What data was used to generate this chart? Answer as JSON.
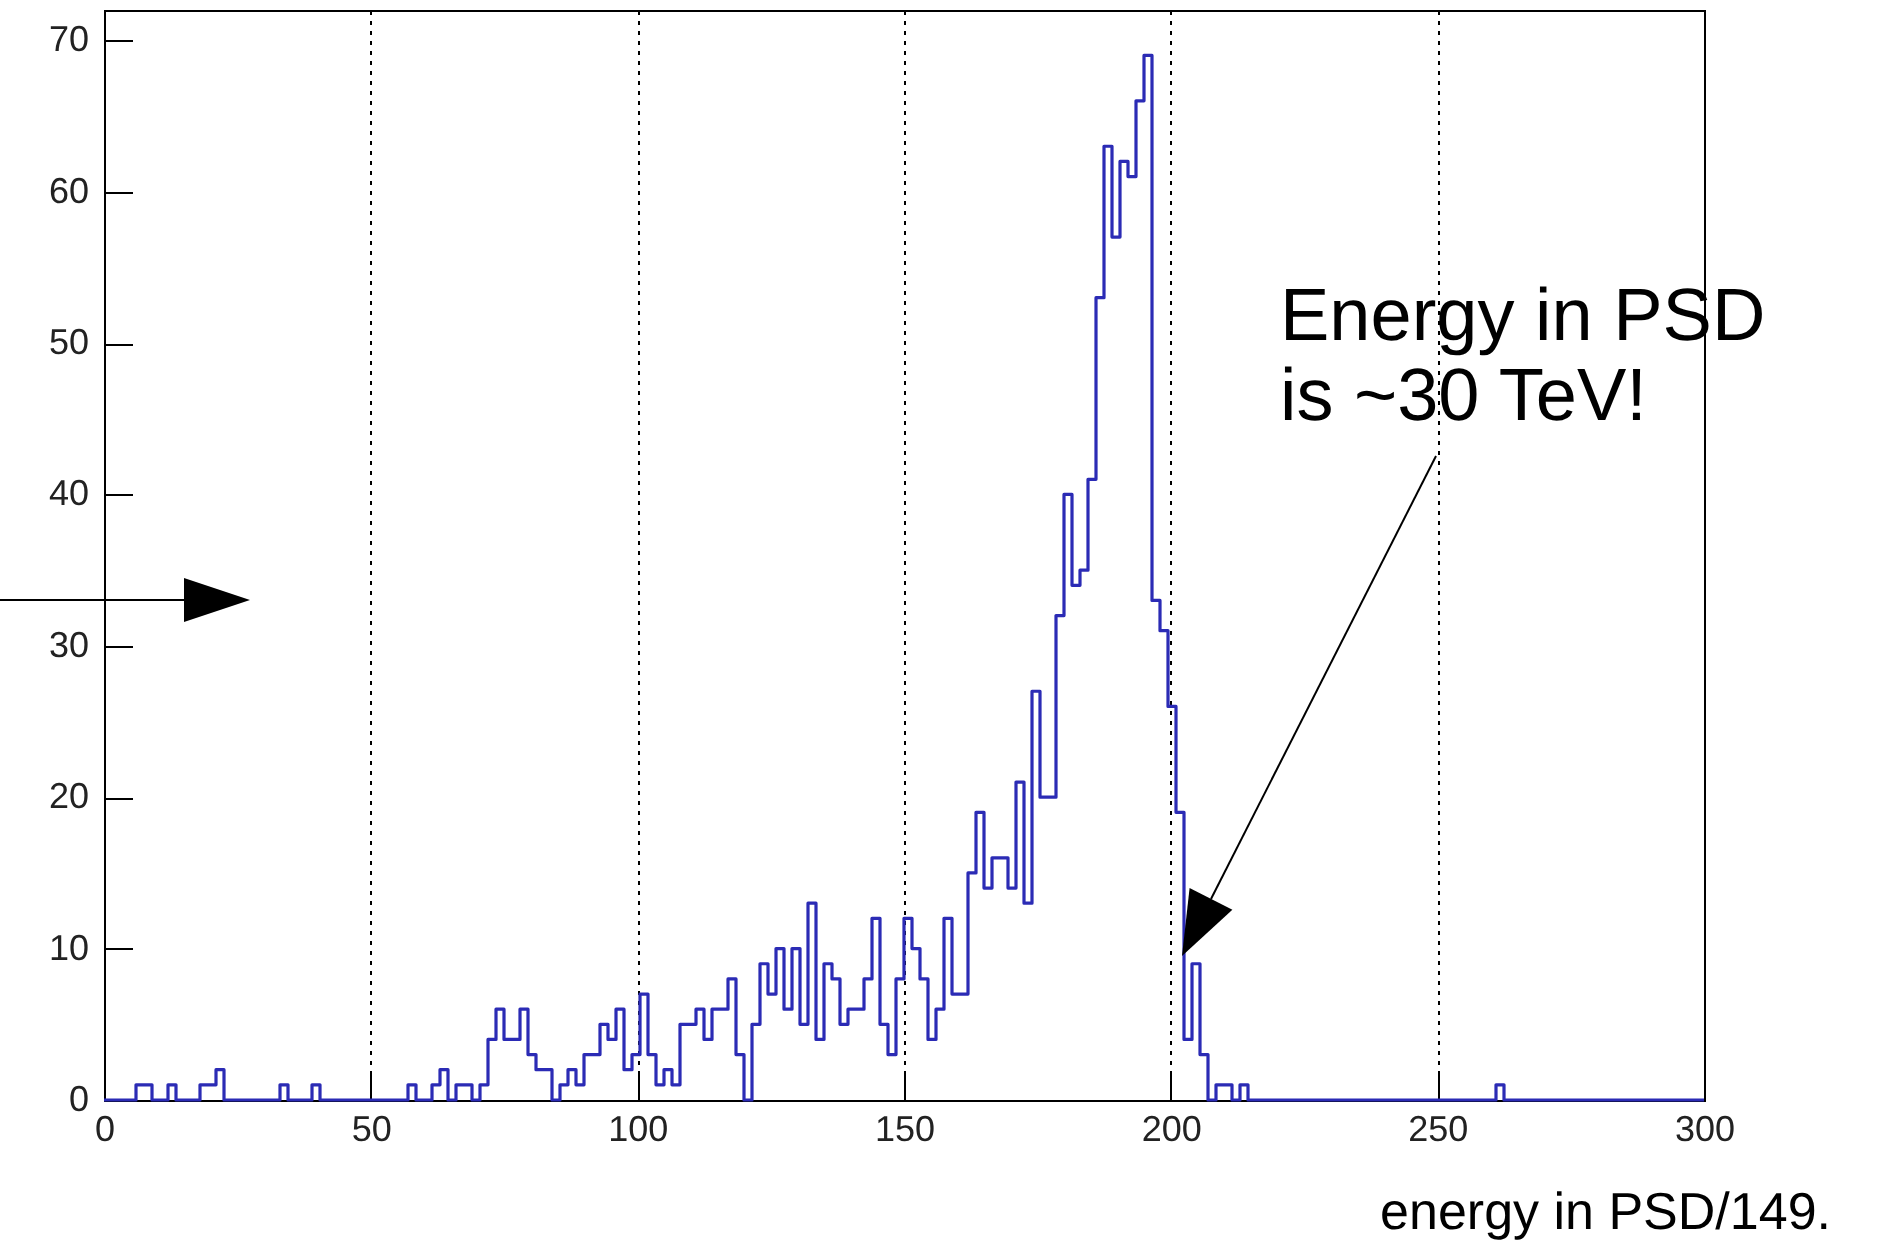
{
  "chart_data": {
    "type": "histogram",
    "xlabel": "energy in PSD/149.",
    "bins": [
      0,
      1.5,
      3,
      4.5,
      6,
      7.5,
      9,
      10.5,
      12,
      13.5,
      15,
      16.5,
      18,
      19.5,
      21,
      22.5,
      24,
      25.5,
      27,
      28.5,
      30,
      31.5,
      33,
      34.5,
      36,
      37.5,
      39,
      40.5,
      42,
      43.5,
      45,
      46.5,
      48,
      49.5,
      51,
      52.5,
      54,
      55.5,
      57,
      58.5,
      60,
      61.5,
      63,
      64.5,
      66,
      67.5,
      69,
      70.5,
      72,
      73.5,
      75,
      76.5,
      78,
      79.5,
      81,
      82.5,
      84,
      85.5,
      87,
      88.5,
      90,
      91.5,
      93,
      94.5,
      96,
      97.5,
      99,
      100.5,
      102,
      103.5,
      105,
      106.5,
      108,
      109.5,
      111,
      112.5,
      114,
      115.5,
      117,
      118.5,
      120,
      121.5,
      123,
      124.5,
      126,
      127.5,
      129,
      130.5,
      132,
      133.5,
      135,
      136.5,
      138,
      139.5,
      141,
      142.5,
      144,
      145.5,
      147,
      148.5,
      150,
      151.5,
      153,
      154.5,
      156,
      157.5,
      159,
      160.5,
      162,
      163.5,
      165,
      166.5,
      168,
      169.5,
      171,
      172.5,
      174,
      175.5,
      177,
      178.5,
      180,
      181.5,
      183,
      184.5,
      186,
      187.5,
      189,
      190.5,
      192,
      193.5,
      195,
      196.5,
      198,
      199.5,
      201,
      202.5,
      204,
      205.5,
      207,
      208.5,
      210,
      211.5,
      213,
      214.5,
      216,
      217.5,
      219,
      220.5,
      222,
      223.5,
      225,
      226.5,
      228,
      229.5,
      231,
      232.5,
      234,
      235.5,
      237,
      238.5,
      240,
      241.5,
      243,
      244.5,
      246,
      247.5,
      249,
      250.5,
      252,
      253.5,
      255,
      256.5,
      258,
      259.5,
      261,
      262.5,
      264,
      265.5,
      267,
      268.5,
      270,
      271.5,
      273,
      274.5,
      276,
      277.5,
      279,
      280.5,
      282,
      283.5,
      285,
      286.5,
      288,
      289.5,
      291,
      292.5,
      294,
      295.5,
      297,
      298.5,
      300
    ],
    "values": [
      0,
      0,
      0,
      0,
      1,
      1,
      0,
      0,
      1,
      0,
      0,
      0,
      1,
      1,
      2,
      0,
      0,
      0,
      0,
      0,
      0,
      0,
      1,
      0,
      0,
      0,
      1,
      0,
      0,
      0,
      0,
      0,
      0,
      0,
      0,
      0,
      0,
      0,
      1,
      0,
      0,
      1,
      2,
      0,
      1,
      1,
      0,
      1,
      4,
      6,
      4,
      4,
      6,
      3,
      2,
      2,
      0,
      1,
      2,
      1,
      3,
      3,
      5,
      4,
      6,
      2,
      3,
      7,
      3,
      1,
      2,
      1,
      5,
      5,
      6,
      4,
      6,
      6,
      8,
      3,
      0,
      5,
      9,
      7,
      10,
      6,
      10,
      5,
      13,
      4,
      9,
      8,
      5,
      6,
      6,
      8,
      12,
      5,
      3,
      8,
      12,
      10,
      8,
      4,
      6,
      12,
      7,
      7,
      15,
      19,
      14,
      16,
      16,
      14,
      21,
      13,
      27,
      20,
      20,
      32,
      40,
      34,
      35,
      41,
      53,
      63,
      57,
      62,
      61,
      66,
      69,
      33,
      31,
      26,
      19,
      4,
      9,
      3,
      0,
      1,
      1,
      0,
      1,
      0,
      0,
      0,
      0,
      0,
      0,
      0,
      0,
      0,
      0,
      0,
      0,
      0,
      0,
      0,
      0,
      0,
      0,
      0,
      0,
      0,
      0,
      0,
      0,
      0,
      0,
      0,
      0,
      0,
      0,
      0,
      1,
      0,
      0,
      0,
      0,
      0,
      0,
      0,
      0,
      0,
      0,
      0,
      0,
      0,
      0,
      0,
      0,
      0,
      0,
      0,
      0,
      0,
      0,
      0,
      0,
      0
    ],
    "color": "#2b2bb5",
    "xlim": [
      0,
      300
    ],
    "xticks": [
      0,
      50,
      100,
      150,
      200,
      250,
      300
    ],
    "ylim": [
      0,
      72
    ],
    "yticks": [
      0,
      10,
      20,
      30,
      40,
      50,
      60,
      70
    ],
    "grid": "x",
    "annotations": [
      "Energy in PSD\nis ~30 TeV!"
    ]
  }
}
